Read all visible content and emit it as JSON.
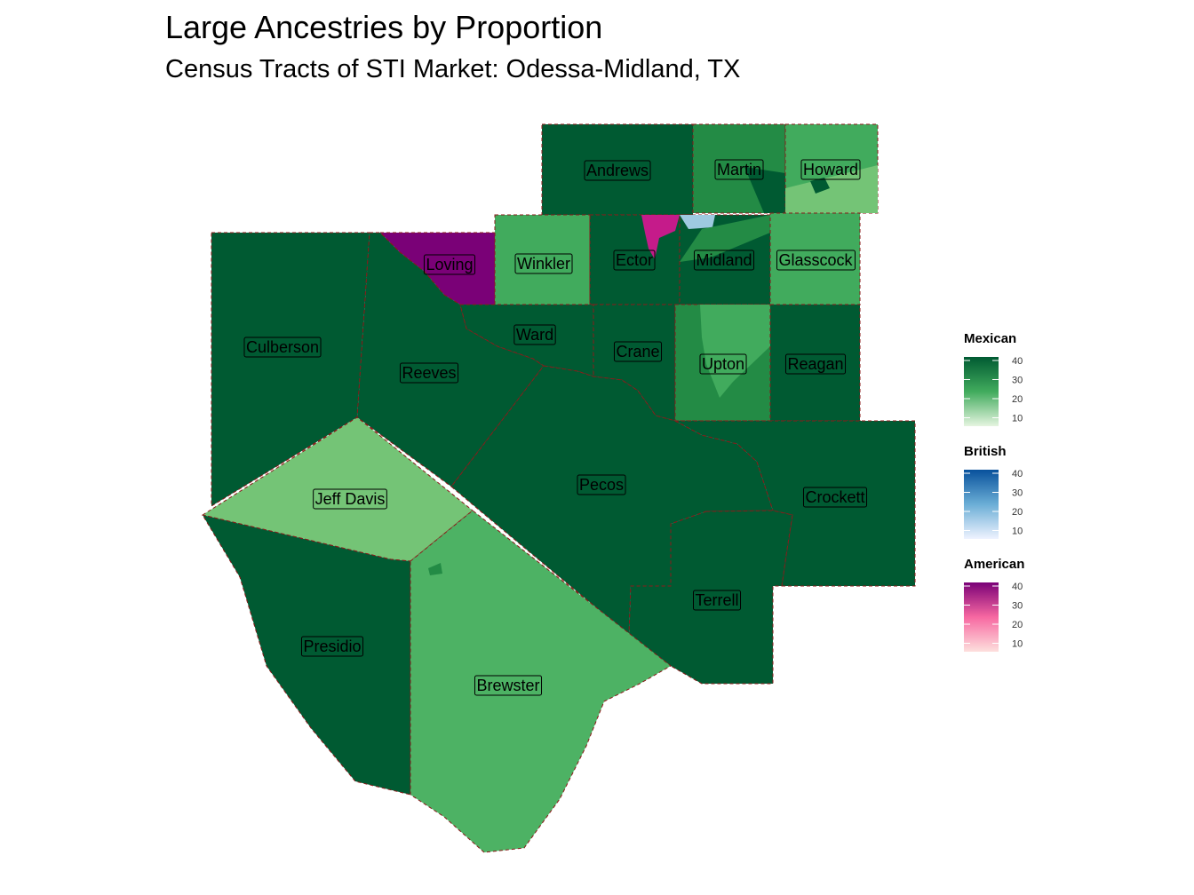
{
  "title": "Large Ancestries by Proportion",
  "subtitle": "Census Tracts of STI Market: Odessa-Midland, TX",
  "colors": {
    "border": "#8b1a1a",
    "dark_green": "#005a32",
    "mid_green": "#238b45",
    "light_green": "#41ab5d",
    "lighter_green": "#74c476",
    "purple": "#7a0177",
    "magenta": "#c51b8a",
    "light_blue": "#9ecae1"
  },
  "counties": [
    {
      "name": "Andrews",
      "fill": "#005a32"
    },
    {
      "name": "Martin",
      "fill": "#238b45"
    },
    {
      "name": "Howard",
      "fill": "#41ab5d"
    },
    {
      "name": "Loving",
      "fill": "#7a0177"
    },
    {
      "name": "Winkler",
      "fill": "#41ab5d"
    },
    {
      "name": "Ector",
      "fill": "#005a32"
    },
    {
      "name": "Midland",
      "fill": "#005a32"
    },
    {
      "name": "Glasscock",
      "fill": "#41ab5d"
    },
    {
      "name": "Culberson",
      "fill": "#005a32"
    },
    {
      "name": "Reeves",
      "fill": "#005a32"
    },
    {
      "name": "Ward",
      "fill": "#005a32"
    },
    {
      "name": "Crane",
      "fill": "#005a32"
    },
    {
      "name": "Upton",
      "fill": "#238b45"
    },
    {
      "name": "Reagan",
      "fill": "#005a32"
    },
    {
      "name": "Jeff Davis",
      "fill": "#74c476"
    },
    {
      "name": "Pecos",
      "fill": "#005a32"
    },
    {
      "name": "Crockett",
      "fill": "#005a32"
    },
    {
      "name": "Terrell",
      "fill": "#005a32"
    },
    {
      "name": "Presidio",
      "fill": "#005a32"
    },
    {
      "name": "Brewster",
      "fill": "#4db264"
    }
  ],
  "legends": [
    {
      "title": "Mexican",
      "ticks": [
        "40",
        "30",
        "20",
        "10"
      ],
      "color_high": "#005a32",
      "color_low": "#e5f5e0"
    },
    {
      "title": "British",
      "ticks": [
        "40",
        "30",
        "20",
        "10"
      ],
      "color_high": "#08519c",
      "color_low": "#eff3ff"
    },
    {
      "title": "American",
      "ticks": [
        "40",
        "30",
        "20",
        "10"
      ],
      "color_high": "#7a0177",
      "color_low": "#fde0dd"
    }
  ]
}
